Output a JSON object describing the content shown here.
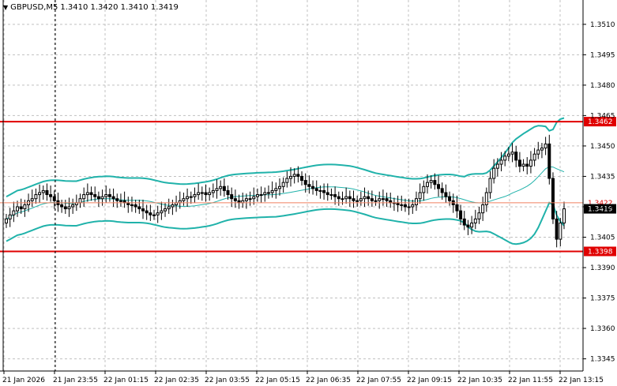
{
  "header": {
    "symbol_label": "GBPUSD,M5",
    "ohlc": "1.3410 1.3420 1.3410 1.3419",
    "menu_icon": "triangle-down-icon"
  },
  "colors": {
    "background": "#ffffff",
    "grid": "#c0c0c0",
    "candle": "#000000",
    "band": "#20b2aa",
    "level_line": "#e00000",
    "bid_line": "#f08060",
    "current_tag_bg": "#000000",
    "level_tag_bg": "#e00000"
  },
  "chart_data": {
    "type": "candlestick",
    "symbol": "GBPUSD",
    "timeframe": "M5",
    "ylim": [
      1.3339,
      1.3522
    ],
    "y_ticks": [
      "1.3510",
      "1.3495",
      "1.3480",
      "1.3465",
      "1.3450",
      "1.3435",
      "1.3420",
      "1.3405",
      "1.3390",
      "1.3375",
      "1.3360",
      "1.3345"
    ],
    "x_ticks": [
      "21 Jan 2026",
      "21 Jan 23:55",
      "22 Jan 01:15",
      "22 Jan 02:35",
      "22 Jan 03:55",
      "22 Jan 05:15",
      "22 Jan 06:35",
      "22 Jan 07:55",
      "22 Jan 09:15",
      "22 Jan 10:35",
      "22 Jan 11:55",
      "22 Jan 13:15"
    ],
    "levels": [
      {
        "label": "1.3462",
        "value": 1.3462
      },
      {
        "label": "1.3398",
        "value": 1.3398
      }
    ],
    "bid_line": {
      "label": "1.3422",
      "value": 1.3422
    },
    "current_price": {
      "label": "1.3419",
      "value": 1.3419
    },
    "close_series": [
      1.3414,
      1.3416,
      1.3418,
      1.342,
      1.3419,
      1.3421,
      1.3423,
      1.3424,
      1.3426,
      1.3427,
      1.3428,
      1.3426,
      1.3425,
      1.3423,
      1.3421,
      1.342,
      1.3419,
      1.342,
      1.3421,
      1.3422,
      1.3424,
      1.3426,
      1.3427,
      1.3426,
      1.3425,
      1.3424,
      1.3425,
      1.3426,
      1.3425,
      1.3424,
      1.3423,
      1.3423,
      1.3422,
      1.3421,
      1.3421,
      1.342,
      1.3419,
      1.3418,
      1.3417,
      1.3416,
      1.3416,
      1.3417,
      1.3418,
      1.3419,
      1.342,
      1.3421,
      1.3422,
      1.3423,
      1.3424,
      1.3425,
      1.3425,
      1.3426,
      1.3427,
      1.3427,
      1.3426,
      1.3427,
      1.3428,
      1.3429,
      1.343,
      1.3428,
      1.3426,
      1.3424,
      1.3423,
      1.3422,
      1.3423,
      1.3424,
      1.3424,
      1.3425,
      1.3426,
      1.3426,
      1.3427,
      1.3427,
      1.3428,
      1.3429,
      1.343,
      1.3432,
      1.3434,
      1.3435,
      1.3436,
      1.3435,
      1.3433,
      1.3431,
      1.343,
      1.3429,
      1.3428,
      1.3428,
      1.3427,
      1.3426,
      1.3426,
      1.3425,
      1.3424,
      1.3424,
      1.3425,
      1.3424,
      1.3423,
      1.3423,
      1.3424,
      1.3425,
      1.3424,
      1.3423,
      1.3423,
      1.3424,
      1.3424,
      1.3423,
      1.3422,
      1.3422,
      1.3421,
      1.3421,
      1.342,
      1.342,
      1.3421,
      1.3424,
      1.3427,
      1.343,
      1.3432,
      1.3433,
      1.3431,
      1.3429,
      1.3427,
      1.3425,
      1.3423,
      1.3421,
      1.3418,
      1.3414,
      1.3411,
      1.341,
      1.3412,
      1.3414,
      1.3417,
      1.3421,
      1.3427,
      1.3434,
      1.3439,
      1.3441,
      1.3443,
      1.3445,
      1.3446,
      1.3447,
      1.3443,
      1.344,
      1.3441,
      1.344,
      1.3443,
      1.3446,
      1.3448,
      1.3449,
      1.3451,
      1.3434,
      1.3414,
      1.3404,
      1.3412,
      1.3419
    ]
  }
}
